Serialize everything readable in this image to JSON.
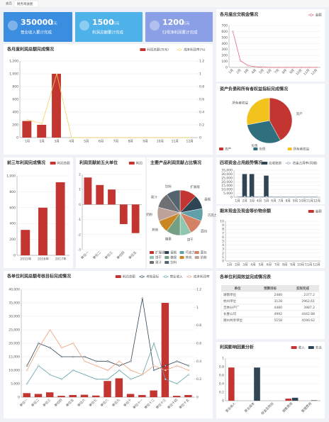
{
  "tabs": [
    "首页",
    "财务驾驶舱"
  ],
  "kpis": [
    {
      "value": 350000,
      "unit": "万元",
      "label": "营业收入累计完成",
      "color": "#3b8de0"
    },
    {
      "value": 1500,
      "unit": "万元",
      "label": "利润总额累计完成",
      "color": "#4eb1ea"
    },
    {
      "value": 1200,
      "unit": "万元",
      "label": "归母净利润累计完成",
      "color": "#8b9fe6"
    }
  ],
  "table": {
    "title": "各单位利润效益完成情况表",
    "header": [
      "单位",
      "预算目标",
      "实际完成"
    ],
    "rows": [
      [
        "湖南单位",
        "2480",
        "2377.2"
      ],
      [
        "杭州单位",
        "3128",
        "2962.61"
      ],
      [
        "吉林分产厂",
        "4480",
        "3987.2"
      ],
      [
        "长春公司",
        "4992",
        "4442.88"
      ],
      [
        "德州共享单位",
        "5158",
        "4590.62"
      ]
    ]
  },
  "chart_data": [
    {
      "type": "bar",
      "title": "各月度利润总额完成情况",
      "categories": [
        "1月",
        "2月",
        "3月",
        "4月",
        "5月",
        "6月",
        "7月",
        "8月",
        "9月",
        "10月",
        "11月",
        "12月"
      ],
      "series": [
        {
          "name": "利润总额(万元)",
          "color": "#c23531",
          "values": [
            260,
            200,
            1000,
            0,
            0,
            0,
            0,
            0,
            0,
            0,
            0,
            0
          ]
        },
        {
          "name": "成本利润率(%)",
          "type": "line",
          "axis": "y2",
          "color": "#f2d15e",
          "values": [
            0.28,
            0.22,
            1,
            0,
            0,
            0,
            0,
            0,
            0,
            0,
            0,
            0
          ]
        }
      ],
      "ylim": [
        0,
        1200
      ],
      "yticks": [
        0,
        200,
        400,
        600,
        800,
        {
          "value": 1000,
          "label": "1,000"
        },
        {
          "value": 1200,
          "label": "1,200"
        }
      ],
      "y2lim": [
        0,
        1.2
      ],
      "y2ticks": [
        0,
        0.2,
        0.4,
        0.6,
        0.8,
        1,
        1.2
      ]
    },
    {
      "type": "line",
      "title": "各月度应交税金情况",
      "categories": [
        "1月",
        "2月",
        "3月",
        "4月",
        "5月",
        "6月",
        "7月",
        "8月",
        "9月",
        "10月",
        "11月",
        "12月"
      ],
      "series": [
        {
          "name": "金额",
          "type": "line",
          "color": "#e0697c",
          "values": [
            600,
            110,
            30,
            10,
            5,
            0,
            0,
            0,
            0,
            0,
            0,
            0
          ]
        }
      ],
      "ylim": [
        0,
        700
      ],
      "yticks": [
        0,
        100,
        200,
        300,
        400,
        500,
        600,
        700
      ]
    },
    {
      "type": "pie",
      "title": "资产负债和所有者权益指标完成情况",
      "categories": [
        "资产",
        "负债",
        "所有者权益"
      ],
      "values": [
        42,
        30,
        28
      ],
      "colors": [
        "#c23531",
        "#2f6f7e",
        "#f2c31c"
      ]
    },
    {
      "type": "bar",
      "title": "前三年利润完成情况",
      "categories": [
        "2015年",
        "2016年",
        "2017年"
      ],
      "series": [
        {
          "name": "利润总额",
          "color": "#c23531",
          "values": [
            320,
            600,
            920
          ]
        }
      ],
      "ylim": [
        0,
        1000
      ],
      "yticks": [
        0,
        200,
        400,
        600,
        800,
        {
          "value": 1000,
          "label": "1,000"
        }
      ]
    },
    {
      "type": "bar",
      "title": "利润贡献前五大单位",
      "categories": [
        "单位一",
        "单位二",
        "单位三",
        "单位四",
        "单位五"
      ],
      "series": [
        {
          "name": "利润",
          "color": "#c23531",
          "values": [
            1.8,
            1.3,
            1,
            -1.3,
            -1.9
          ]
        }
      ],
      "ylim": [
        -3,
        2
      ],
      "yticks": [
        -3,
        -2,
        -1,
        0,
        1,
        2
      ]
    },
    {
      "type": "pie",
      "title": "主要产品利润贡献占比情况",
      "categories": [
        "扩展纸",
        "蛋糕",
        "巧克力",
        "面包",
        "饼干",
        "糖果",
        "其他",
        "奶粉",
        "果汁",
        "饮料"
      ],
      "values": [
        12,
        10,
        9,
        11,
        8,
        10,
        9,
        10,
        11,
        10
      ],
      "colors": [
        "#c23531",
        "#2f4554",
        "#61a0a8",
        "#d48265",
        "#91c7ae",
        "#749f83",
        "#ca8622",
        "#bda29a",
        "#6e7074",
        "#546570"
      ]
    },
    {
      "type": "bar",
      "title": "四项资金占用趋势情况",
      "categories": [
        "1月",
        "2月",
        "3月",
        "4月",
        "5月",
        "6月",
        "7月",
        "8月",
        "9月",
        "10月",
        "11月",
        "12月"
      ],
      "series": [
        {
          "name": "应收账款",
          "color": "#2f4554",
          "values": [
            0,
            30000,
            30000,
            0,
            28000,
            0,
            0,
            0,
            0,
            0,
            0,
            0
          ]
        },
        {
          "name": "资金占用率(同期)",
          "type": "line",
          "color": "#8fa3b5",
          "values": [
            500,
            800,
            600,
            400,
            500,
            300,
            300,
            300,
            300,
            300,
            300,
            300
          ]
        }
      ],
      "ylim": [
        0,
        35000
      ],
      "yticks": [
        0,
        {
          "value": 5000,
          "label": "5,000"
        },
        {
          "value": 10000,
          "label": "10,000"
        },
        {
          "value": 15000,
          "label": "15,000"
        },
        {
          "value": 20000,
          "label": "20,000"
        },
        {
          "value": 25000,
          "label": "25,000"
        },
        {
          "value": 30000,
          "label": "30,000"
        },
        {
          "value": 35000,
          "label": "35,000"
        }
      ]
    },
    {
      "type": "bar",
      "title": "期末现金及现金等价物余额",
      "categories": [
        "1月",
        "2月",
        "3月",
        "4月",
        "5月",
        "6月",
        "7月",
        "8月",
        "9月",
        "10月",
        "11月",
        "12月"
      ],
      "series": [
        {
          "name": "金额",
          "color": "#c23531",
          "values": [
            0,
            0,
            0,
            0,
            0,
            0,
            0,
            0,
            0,
            0,
            0,
            0
          ]
        }
      ],
      "ylim": [
        0,
        10
      ],
      "yticks": [
        0,
        1,
        2,
        3,
        4,
        5,
        6,
        7,
        8,
        9,
        10
      ]
    },
    {
      "type": "bar",
      "title": "各单位利润总额考核目标完成情况",
      "categories": [
        "单位一",
        "单位二",
        "单位三",
        "单位四",
        "单位五",
        "单位六",
        "单位七",
        "单位八",
        "单位九",
        "单位十",
        "单位十一",
        "单位十二",
        "单位十三",
        "单位十四",
        "单位十五"
      ],
      "series": [
        {
          "name": "利润总额",
          "color": "#c23531",
          "values": [
            1500,
            1200,
            1800,
            500,
            800,
            900,
            600,
            6000,
            7000,
            1200,
            800,
            2500,
            35000,
            500,
            800
          ]
        },
        {
          "name": "考核目标",
          "type": "line",
          "axis": "y2",
          "color": "#2f4554",
          "values": [
            0.35,
            0.6,
            0.55,
            0.45,
            0.45,
            0.45,
            0.4,
            0.4,
            0.35,
            0.4,
            1.1,
            0.3,
            0.35,
            0.4,
            0.35
          ]
        },
        {
          "name": "营业收入",
          "type": "line",
          "axis": "y2",
          "color": "#61a0a8",
          "values": [
            0.15,
            0.35,
            0.25,
            0.2,
            0.3,
            0.25,
            0.2,
            0.2,
            0.3,
            0.2,
            0.25,
            0.6,
            0.2,
            0.15,
            0.25
          ]
        },
        {
          "name": "成本利润率",
          "type": "line",
          "axis": "y2",
          "color": "#e8a07c",
          "values": [
            0.3,
            0.55,
            0.75,
            0.55,
            0.6,
            0.4,
            0.35,
            0.3,
            0.4,
            0.3,
            0.25,
            0.35,
            0.3,
            0.35,
            0.3
          ]
        }
      ],
      "ylim": [
        0,
        40000
      ],
      "yticks": [
        0,
        {
          "value": 5000,
          "label": "5,000"
        },
        {
          "value": 10000,
          "label": "10,000"
        },
        {
          "value": 15000,
          "label": "15,000"
        },
        {
          "value": 20000,
          "label": "20,000"
        },
        {
          "value": 25000,
          "label": "25,000"
        },
        {
          "value": 30000,
          "label": "30,000"
        },
        {
          "value": 35000,
          "label": "35,000"
        },
        {
          "value": 40000,
          "label": "40,000"
        }
      ],
      "y2lim": [
        0,
        1.2
      ],
      "y2ticks": [
        0,
        0.2,
        0.4,
        0.6,
        0.8,
        1,
        1.2
      ]
    },
    {
      "type": "bar",
      "title": "利润影响因素分析",
      "categories": [
        "营业收入",
        "营业成本",
        "税金及附加",
        "销售费用",
        "管理费用"
      ],
      "series": [
        {
          "name": "收入",
          "color": "#c23531",
          "values": [
            0.78,
            0,
            0,
            0.05,
            0
          ]
        },
        {
          "name": "支出",
          "color": "#2f4554",
          "values": [
            0,
            0.78,
            0,
            0.07,
            0.01
          ]
        }
      ],
      "ylim": [
        0,
        1
      ],
      "yticks": [
        0,
        0.2,
        0.4,
        0.6,
        0.8,
        1
      ]
    }
  ]
}
